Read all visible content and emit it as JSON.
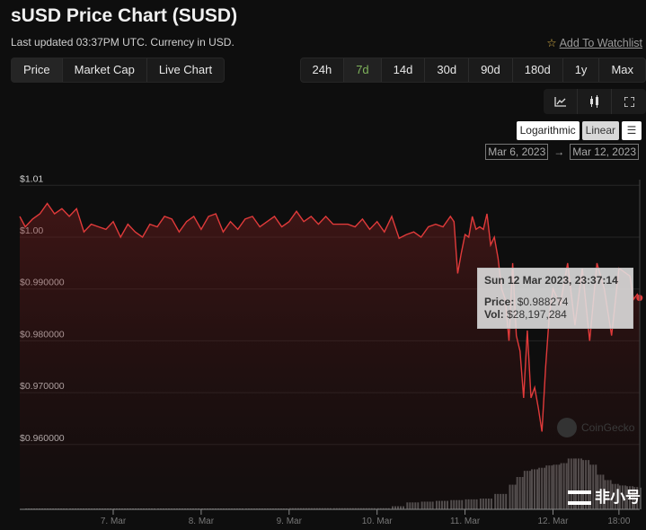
{
  "header": {
    "title": "sUSD Price Chart (SUSD)",
    "subtitle": "Last updated 03:37PM UTC. Currency in USD.",
    "watchlist": "Add To Watchlist"
  },
  "view_tabs": [
    "Price",
    "Market Cap",
    "Live Chart"
  ],
  "range_tabs": [
    "24h",
    "7d",
    "14d",
    "30d",
    "90d",
    "180d",
    "1y",
    "Max"
  ],
  "active_range": "7d",
  "chart_tools": [
    "line-chart-icon",
    "candlestick-icon",
    "fullscreen-icon"
  ],
  "scale": {
    "log": "Logarithmic",
    "linear": "Linear",
    "active": "Linear"
  },
  "date_range": {
    "from": "Mar 6, 2023",
    "to": "Mar 12, 2023",
    "arrow": "→"
  },
  "tooltip": {
    "date": "Sun 12 Mar 2023, 23:37:14",
    "price_label": "Price:",
    "price": "$0.988274",
    "vol_label": "Vol:",
    "vol": "$28,197,284"
  },
  "watermark": "CoinGecko",
  "corner_logo": "非小号",
  "colors": {
    "line": "#e03a3a",
    "active_range": "#7fb35b",
    "volume": "#5a5a5a"
  },
  "chart_data": {
    "type": "line",
    "grid": true,
    "ylim": [
      0.955,
      1.012
    ],
    "xlim": [
      "2023-03-05T22:30",
      "2023-03-12T23:40"
    ],
    "y_ticks": [
      {
        "v": 1.01,
        "label": "$1.01"
      },
      {
        "v": 1.0,
        "label": "$1.00"
      },
      {
        "v": 0.99,
        "label": "$0.990000"
      },
      {
        "v": 0.98,
        "label": "$0.980000"
      },
      {
        "v": 0.97,
        "label": "$0.970000"
      },
      {
        "v": 0.96,
        "label": "$0.960000"
      }
    ],
    "x_ticks": [
      {
        "t": "2023-03-07T00:00",
        "label": "7. Mar"
      },
      {
        "t": "2023-03-08T00:00",
        "label": "8. Mar"
      },
      {
        "t": "2023-03-09T00:00",
        "label": "9. Mar"
      },
      {
        "t": "2023-03-10T00:00",
        "label": "10. Mar"
      },
      {
        "t": "2023-03-11T00:00",
        "label": "11. Mar"
      },
      {
        "t": "2023-03-12T00:00",
        "label": "12. Mar"
      },
      {
        "t": "2023-03-12T18:00",
        "label": "18:00"
      }
    ],
    "price": [
      [
        "2023-03-05T22:30",
        1.004
      ],
      [
        "2023-03-06T00:00",
        1.002
      ],
      [
        "2023-03-06T02:00",
        1.0035
      ],
      [
        "2023-03-06T04:00",
        1.0045
      ],
      [
        "2023-03-06T06:00",
        1.0065
      ],
      [
        "2023-03-06T08:00",
        1.0045
      ],
      [
        "2023-03-06T10:00",
        1.0055
      ],
      [
        "2023-03-06T12:00",
        1.004
      ],
      [
        "2023-03-06T14:00",
        1.0055
      ],
      [
        "2023-03-06T16:00",
        1.001
      ],
      [
        "2023-03-06T18:00",
        1.0025
      ],
      [
        "2023-03-06T20:00",
        1.002
      ],
      [
        "2023-03-06T22:00",
        1.0015
      ],
      [
        "2023-03-07T00:00",
        1.003
      ],
      [
        "2023-03-07T02:00",
        1.0
      ],
      [
        "2023-03-07T04:00",
        1.0025
      ],
      [
        "2023-03-07T06:00",
        1.001
      ],
      [
        "2023-03-07T08:00",
        1.0
      ],
      [
        "2023-03-07T10:00",
        1.0025
      ],
      [
        "2023-03-07T12:00",
        1.002
      ],
      [
        "2023-03-07T14:00",
        1.004
      ],
      [
        "2023-03-07T16:00",
        1.0035
      ],
      [
        "2023-03-07T18:00",
        1.001
      ],
      [
        "2023-03-07T20:00",
        1.003
      ],
      [
        "2023-03-07T22:00",
        1.004
      ],
      [
        "2023-03-08T00:00",
        1.0015
      ],
      [
        "2023-03-08T02:00",
        1.004
      ],
      [
        "2023-03-08T04:00",
        1.0045
      ],
      [
        "2023-03-08T06:00",
        1.001
      ],
      [
        "2023-03-08T08:00",
        1.003
      ],
      [
        "2023-03-08T10:00",
        1.0015
      ],
      [
        "2023-03-08T12:00",
        1.0035
      ],
      [
        "2023-03-08T14:00",
        1.004
      ],
      [
        "2023-03-08T16:00",
        1.002
      ],
      [
        "2023-03-08T18:00",
        1.003
      ],
      [
        "2023-03-08T20:00",
        1.004
      ],
      [
        "2023-03-08T22:00",
        1.002
      ],
      [
        "2023-03-09T00:00",
        1.003
      ],
      [
        "2023-03-09T02:00",
        1.005
      ],
      [
        "2023-03-09T04:00",
        1.003
      ],
      [
        "2023-03-09T06:00",
        1.004
      ],
      [
        "2023-03-09T08:00",
        1.0025
      ],
      [
        "2023-03-09T10:00",
        1.004
      ],
      [
        "2023-03-09T12:00",
        1.0025
      ],
      [
        "2023-03-09T14:00",
        1.0025
      ],
      [
        "2023-03-09T16:00",
        1.0025
      ],
      [
        "2023-03-09T18:00",
        1.002
      ],
      [
        "2023-03-09T20:00",
        1.0035
      ],
      [
        "2023-03-09T22:00",
        1.0015
      ],
      [
        "2023-03-10T00:00",
        1.003
      ],
      [
        "2023-03-10T02:00",
        1.001
      ],
      [
        "2023-03-10T04:00",
        1.004
      ],
      [
        "2023-03-10T06:00",
        0.9998
      ],
      [
        "2023-03-10T08:00",
        1.0005
      ],
      [
        "2023-03-10T10:00",
        1.001
      ],
      [
        "2023-03-10T12:00",
        1.0
      ],
      [
        "2023-03-10T14:00",
        1.002
      ],
      [
        "2023-03-10T16:00",
        1.0025
      ],
      [
        "2023-03-10T18:00",
        1.002
      ],
      [
        "2023-03-10T20:00",
        1.004
      ],
      [
        "2023-03-10T21:00",
        1.003
      ],
      [
        "2023-03-10T22:00",
        0.993
      ],
      [
        "2023-03-10T23:00",
        0.997
      ],
      [
        "2023-03-11T00:00",
        1.0005
      ],
      [
        "2023-03-11T01:00",
        1.0
      ],
      [
        "2023-03-11T02:00",
        1.004
      ],
      [
        "2023-03-11T03:00",
        1.0015
      ],
      [
        "2023-03-11T04:00",
        1.002
      ],
      [
        "2023-03-11T05:00",
        1.0015
      ],
      [
        "2023-03-11T06:00",
        1.0045
      ],
      [
        "2023-03-11T07:00",
        0.9985
      ],
      [
        "2023-03-11T08:00",
        1.0
      ],
      [
        "2023-03-11T09:00",
        0.996
      ],
      [
        "2023-03-11T10:00",
        0.99
      ],
      [
        "2023-03-11T11:00",
        0.988
      ],
      [
        "2023-03-11T12:00",
        0.98
      ],
      [
        "2023-03-11T13:00",
        0.995
      ],
      [
        "2023-03-11T14:00",
        0.981
      ],
      [
        "2023-03-11T15:00",
        0.978
      ],
      [
        "2023-03-11T16:00",
        0.969
      ],
      [
        "2023-03-11T17:00",
        0.982
      ],
      [
        "2023-03-11T18:00",
        0.969
      ],
      [
        "2023-03-11T19:00",
        0.971
      ],
      [
        "2023-03-11T20:00",
        0.967
      ],
      [
        "2023-03-11T21:00",
        0.9625
      ],
      [
        "2023-03-11T22:00",
        0.975
      ],
      [
        "2023-03-11T23:00",
        0.985
      ],
      [
        "2023-03-12T00:00",
        0.99
      ],
      [
        "2023-03-12T02:00",
        0.987
      ],
      [
        "2023-03-12T04:00",
        0.995
      ],
      [
        "2023-03-12T06:00",
        0.983
      ],
      [
        "2023-03-12T08:00",
        0.994
      ],
      [
        "2023-03-12T10:00",
        0.98
      ],
      [
        "2023-03-12T12:00",
        0.995
      ],
      [
        "2023-03-12T14:00",
        0.99
      ],
      [
        "2023-03-12T16:00",
        0.981
      ],
      [
        "2023-03-12T18:00",
        0.994
      ],
      [
        "2023-03-12T20:00",
        0.993
      ],
      [
        "2023-03-12T21:00",
        0.9925
      ],
      [
        "2023-03-12T22:00",
        0.988
      ],
      [
        "2023-03-12T23:00",
        0.989
      ],
      [
        "2023-03-12T23:37",
        0.988274
      ]
    ],
    "volume_millions": [
      [
        "2023-03-06T00:00",
        1
      ],
      [
        "2023-03-06T12:00",
        1
      ],
      [
        "2023-03-07T00:00",
        1
      ],
      [
        "2023-03-07T12:00",
        1
      ],
      [
        "2023-03-08T00:00",
        1
      ],
      [
        "2023-03-08T12:00",
        1
      ],
      [
        "2023-03-09T00:00",
        1.5
      ],
      [
        "2023-03-09T12:00",
        1.5
      ],
      [
        "2023-03-10T00:00",
        1.5
      ],
      [
        "2023-03-10T04:00",
        4
      ],
      [
        "2023-03-10T08:00",
        9
      ],
      [
        "2023-03-10T12:00",
        10
      ],
      [
        "2023-03-10T16:00",
        11
      ],
      [
        "2023-03-10T20:00",
        12
      ],
      [
        "2023-03-11T00:00",
        13
      ],
      [
        "2023-03-11T04:00",
        14
      ],
      [
        "2023-03-11T08:00",
        20
      ],
      [
        "2023-03-11T12:00",
        32
      ],
      [
        "2023-03-11T14:00",
        42
      ],
      [
        "2023-03-11T16:00",
        50
      ],
      [
        "2023-03-11T18:00",
        52
      ],
      [
        "2023-03-11T20:00",
        54
      ],
      [
        "2023-03-11T22:00",
        57
      ],
      [
        "2023-03-12T00:00",
        58
      ],
      [
        "2023-03-12T02:00",
        60
      ],
      [
        "2023-03-12T04:00",
        66
      ],
      [
        "2023-03-12T06:00",
        66
      ],
      [
        "2023-03-12T08:00",
        64
      ],
      [
        "2023-03-12T10:00",
        58
      ],
      [
        "2023-03-12T12:00",
        45
      ],
      [
        "2023-03-12T14:00",
        38
      ],
      [
        "2023-03-12T16:00",
        33
      ],
      [
        "2023-03-12T18:00",
        31
      ],
      [
        "2023-03-12T20:00",
        30
      ],
      [
        "2023-03-12T22:00",
        29
      ],
      [
        "2023-03-12T23:37",
        28.197284
      ]
    ]
  }
}
